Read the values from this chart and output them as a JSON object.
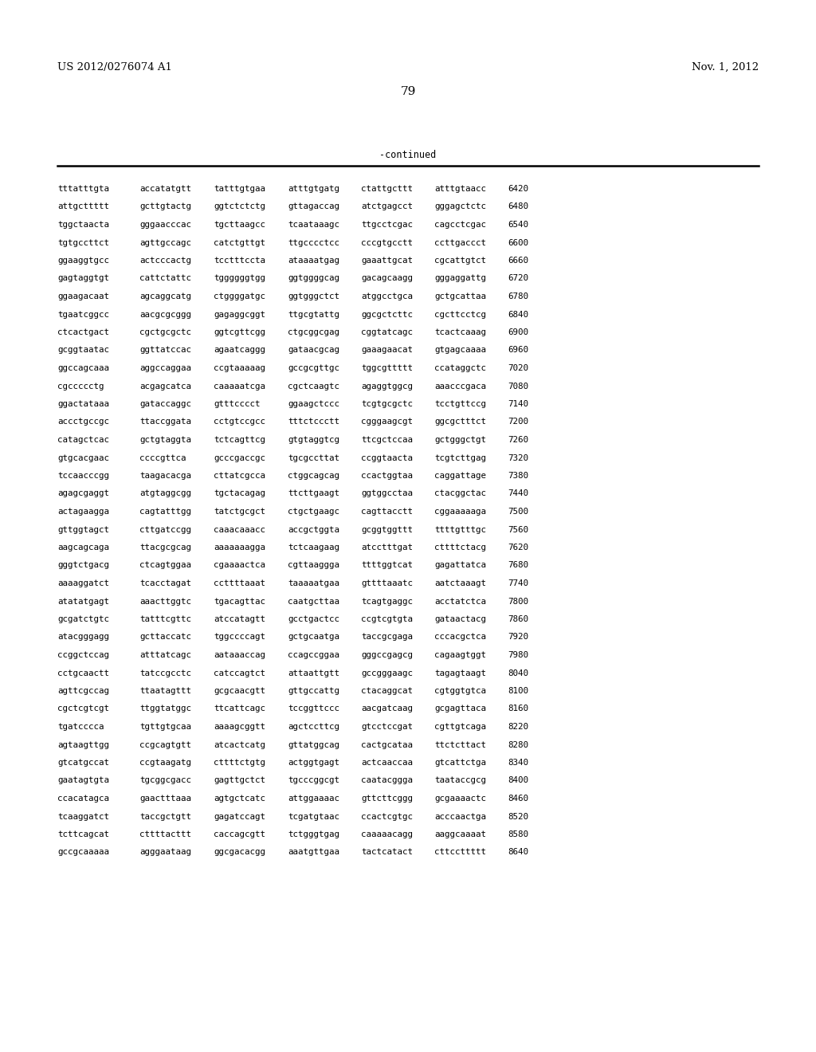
{
  "header_left": "US 2012/0276074 A1",
  "header_right": "Nov. 1, 2012",
  "page_number": "79",
  "continued_label": "-continued",
  "background_color": "#ffffff",
  "text_color": "#000000",
  "font_size": 7.8,
  "header_font_size": 9.5,
  "page_num_font_size": 11,
  "continued_font_size": 8.5,
  "lines": [
    [
      "tttatttgta",
      "accatatgtt",
      "tatttgtgaa",
      "atttgtgatg",
      "ctattgcttt",
      "atttgtaacc",
      "6420"
    ],
    [
      "attgcttttt",
      "gcttgtactg",
      "ggtctctctg",
      "gttagaccag",
      "atctgagcct",
      "gggagctctc",
      "6480"
    ],
    [
      "tggctaacta",
      "gggaacccac",
      "tgcttaagcc",
      "tcaataaagc",
      "ttgcctcgac",
      "cagcctcgac",
      "6540"
    ],
    [
      "tgtgccttct",
      "agttgccagc",
      "catctgttgt",
      "ttgcccctcc",
      "cccgtgcctt",
      "ccttgaccct",
      "6600"
    ],
    [
      "ggaaggtgcc",
      "actcccactg",
      "tcctttccta",
      "ataaaatgag",
      "gaaattgcat",
      "cgcattgtct",
      "6660"
    ],
    [
      "gagtaggtgt",
      "cattctattc",
      "tggggggtgg",
      "ggtggggcag",
      "gacagcaagg",
      "gggaggattg",
      "6720"
    ],
    [
      "ggaagacaat",
      "agcaggcatg",
      "ctggggatgc",
      "ggtgggctct",
      "atggcctgca",
      "gctgcattaa",
      "6780"
    ],
    [
      "tgaatcggcc",
      "aacgcgcggg",
      "gagaggcggt",
      "ttgcgtattg",
      "ggcgctcttc",
      "cgcttcctcg",
      "6840"
    ],
    [
      "ctcactgact",
      "cgctgcgctc",
      "ggtcgttcgg",
      "ctgcggcgag",
      "cggtatcagc",
      "tcactcaaag",
      "6900"
    ],
    [
      "gcggtaatac",
      "ggttatccac",
      "agaatcaggg",
      "gataacgcag",
      "gaaagaacat",
      "gtgagcaaaa",
      "6960"
    ],
    [
      "ggccagcaaa",
      "aggccaggaa",
      "ccgtaaaaag",
      "gccgcgttgc",
      "tggcgttttt",
      "ccataggctc",
      "7020"
    ],
    [
      "cgccccctg",
      "acgagcatca",
      "caaaaatcga",
      "cgctcaagtc",
      "agaggtggcg",
      "aaacccgaca",
      "7080"
    ],
    [
      "ggactataaa",
      "gataccaggc",
      "gtttcccct",
      "ggaagctccc",
      "tcgtgcgctc",
      "tcctgttccg",
      "7140"
    ],
    [
      "accctgccgc",
      "ttaccggata",
      "cctgtccgcc",
      "tttctccctt",
      "cgggaagcgt",
      "ggcgctttct",
      "7200"
    ],
    [
      "catagctcac",
      "gctgtaggta",
      "tctcagttcg",
      "gtgtaggtcg",
      "ttcgctccaa",
      "gctgggctgt",
      "7260"
    ],
    [
      "gtgcacgaac",
      "ccccgttca",
      "gcccgaccgc",
      "tgcgccttat",
      "ccggtaacta",
      "tcgtcttgag",
      "7320"
    ],
    [
      "tccaacccgg",
      "taagacacga",
      "cttatcgcca",
      "ctggcagcag",
      "ccactggtaa",
      "caggattage",
      "7380"
    ],
    [
      "agagcgaggt",
      "atgtaggcgg",
      "tgctacagag",
      "ttcttgaagt",
      "ggtggcctaa",
      "ctacggctac",
      "7440"
    ],
    [
      "actagaagga",
      "cagtatttgg",
      "tatctgcgct",
      "ctgctgaagc",
      "cagttacctt",
      "cggaaaaaga",
      "7500"
    ],
    [
      "gttggtagct",
      "cttgatccgg",
      "caaacaaacc",
      "accgctggta",
      "gcggtggttt",
      "ttttgtttgc",
      "7560"
    ],
    [
      "aagcagcaga",
      "ttacgcgcag",
      "aaaaaaagga",
      "tctcaagaag",
      "atcctttgat",
      "cttttctacg",
      "7620"
    ],
    [
      "gggtctgacg",
      "ctcagtggaa",
      "cgaaaactca",
      "cgttaaggga",
      "ttttggtcat",
      "gagattatca",
      "7680"
    ],
    [
      "aaaaggatct",
      "tcacctagat",
      "ccttttaaat",
      "taaaaatgaa",
      "gttttaaatc",
      "aatctaaagt",
      "7740"
    ],
    [
      "atatatgagt",
      "aaacttggtc",
      "tgacagttac",
      "caatgcttaa",
      "tcagtgaggc",
      "acctatctca",
      "7800"
    ],
    [
      "gcgatctgtc",
      "tatttcgttc",
      "atccatagtt",
      "gcctgactcc",
      "ccgtcgtgta",
      "gataactacg",
      "7860"
    ],
    [
      "atacgggagg",
      "gcttaccatc",
      "tggccccagt",
      "gctgcaatga",
      "taccgcgaga",
      "cccacgctca",
      "7920"
    ],
    [
      "ccggctccag",
      "atttatcagc",
      "aataaaccag",
      "ccagccggaa",
      "gggccgagcg",
      "cagaagtggt",
      "7980"
    ],
    [
      "cctgcaactt",
      "tatccgcctc",
      "catccagtct",
      "attaattgtt",
      "gccgggaagc",
      "tagagtaagt",
      "8040"
    ],
    [
      "agttcgccag",
      "ttaatagttt",
      "gcgcaacgtt",
      "gttgccattg",
      "ctacaggcat",
      "cgtggtgtca",
      "8100"
    ],
    [
      "cgctcgtcgt",
      "ttggtatggc",
      "ttcattcagc",
      "tccggttccc",
      "aacgatcaag",
      "gcgagttaca",
      "8160"
    ],
    [
      "tgatcccca",
      "tgttgtgcaa",
      "aaaagcggtt",
      "agctccttcg",
      "gtcctccgat",
      "cgttgtcaga",
      "8220"
    ],
    [
      "agtaagttgg",
      "ccgcagtgtt",
      "atcactcatg",
      "gttatggcag",
      "cactgcataa",
      "ttctcttact",
      "8280"
    ],
    [
      "gtcatgccat",
      "ccgtaagatg",
      "cttttctgtg",
      "actggtgagt",
      "actcaaccaa",
      "gtcattctga",
      "8340"
    ],
    [
      "gaatagtgta",
      "tgcggcgacc",
      "gagttgctct",
      "tgcccggcgt",
      "caatacggga",
      "taataccgcg",
      "8400"
    ],
    [
      "ccacatagca",
      "gaactttaaa",
      "agtgctcatc",
      "attggaaaac",
      "gttcttcggg",
      "gcgaaaactc",
      "8460"
    ],
    [
      "tcaaggatct",
      "taccgctgtt",
      "gagatccagt",
      "tcgatgtaac",
      "ccactcgtgc",
      "acccaactga",
      "8520"
    ],
    [
      "tcttcagcat",
      "cttttacttt",
      "caccagcgtt",
      "tctgggtgag",
      "caaaaacagg",
      "aaggcaaaat",
      "8580"
    ],
    [
      "gccgcaaaaa",
      "agggaataag",
      "ggcgacacgg",
      "aaatgttgaa",
      "tactcatact",
      "cttccttttt",
      "8640"
    ]
  ]
}
